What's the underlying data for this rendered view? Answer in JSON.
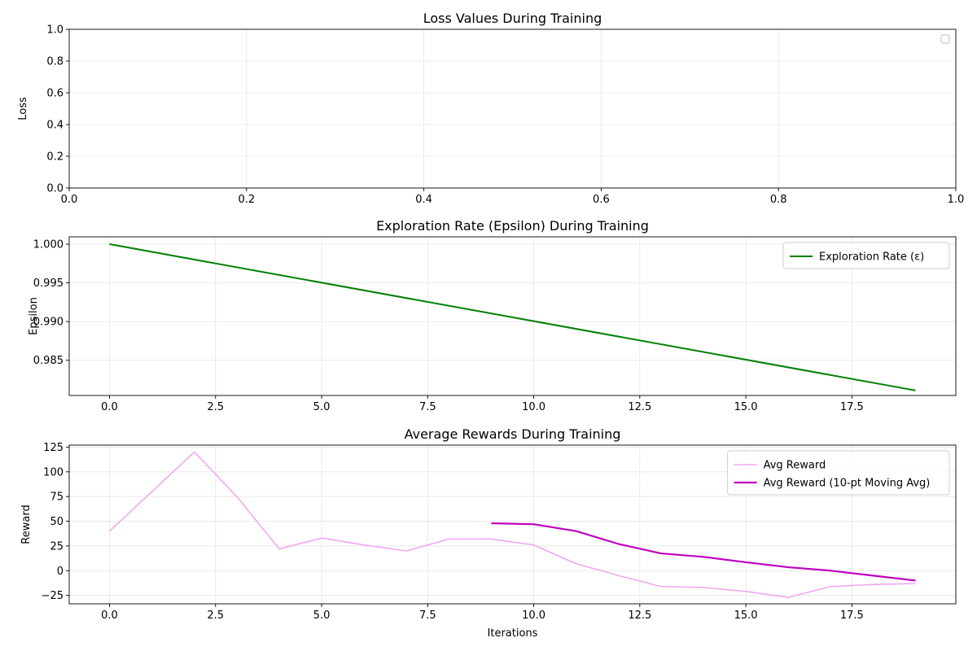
{
  "chart_data": [
    {
      "type": "line",
      "title": "Loss Values During Training",
      "xlabel": "",
      "ylabel": "Loss",
      "xlim": [
        0,
        1
      ],
      "ylim": [
        0,
        1
      ],
      "xticks": [
        0.0,
        0.2,
        0.4,
        0.6,
        0.8,
        1.0
      ],
      "xtick_labels": [
        "0.0",
        "0.2",
        "0.4",
        "0.6",
        "0.8",
        "1.0"
      ],
      "yticks": [
        0.0,
        0.2,
        0.4,
        0.6,
        0.8,
        1.0
      ],
      "ytick_labels": [
        "0.0",
        "0.2",
        "0.4",
        "0.6",
        "0.8",
        "1.0"
      ],
      "grid": true,
      "legend": "top-right",
      "series": []
    },
    {
      "type": "line",
      "title": "Exploration Rate (Epsilon) During Training",
      "xlabel": "",
      "ylabel": "Epsilon",
      "xlim": [
        -0.95,
        19.95
      ],
      "ylim": [
        0.98045,
        1.00095
      ],
      "xticks": [
        0,
        2.5,
        5,
        7.5,
        10,
        12.5,
        15,
        17.5
      ],
      "xtick_labels": [
        "0.0",
        "2.5",
        "5.0",
        "7.5",
        "10.0",
        "12.5",
        "15.0",
        "17.5"
      ],
      "yticks": [
        0.985,
        0.99,
        0.995,
        1.0
      ],
      "ytick_labels": [
        "0.985",
        "0.990",
        "0.995",
        "1.000"
      ],
      "grid": true,
      "legend": "top-right",
      "series": [
        {
          "name": "Exploration Rate (ε)",
          "color": "#008000",
          "width": 2,
          "x": [
            0,
            19
          ],
          "y": [
            1.0,
            0.9811
          ]
        }
      ]
    },
    {
      "type": "line",
      "title": "Average Rewards During Training",
      "xlabel": "Iterations",
      "ylabel": "Reward",
      "xlim": [
        -0.95,
        19.95
      ],
      "ylim": [
        -33.5,
        127
      ],
      "xticks": [
        0,
        2.5,
        5,
        7.5,
        10,
        12.5,
        15,
        17.5
      ],
      "xtick_labels": [
        "0.0",
        "2.5",
        "5.0",
        "7.5",
        "10.0",
        "12.5",
        "15.0",
        "17.5"
      ],
      "yticks": [
        -25,
        0,
        25,
        50,
        75,
        100,
        125
      ],
      "ytick_labels": [
        "−25",
        "0",
        "25",
        "50",
        "75",
        "100",
        "125"
      ],
      "grid": true,
      "legend": "top-right",
      "series": [
        {
          "name": "Avg Reward",
          "color": "#f0a8f0",
          "width": 1.6,
          "x": [
            0,
            1,
            2,
            3,
            4,
            5,
            6,
            7,
            8,
            9,
            10,
            11,
            12,
            13,
            14,
            15,
            16,
            17,
            18,
            19
          ],
          "y": [
            40,
            80,
            120,
            75,
            22,
            33,
            26,
            20,
            32,
            32,
            26,
            7,
            -5,
            -16,
            -17,
            -21,
            -27,
            -16,
            -14,
            -13
          ]
        },
        {
          "name": "Avg Reward (10-pt Moving Avg)",
          "color": "#bf00bf",
          "width": 2.2,
          "x": [
            9,
            10,
            11,
            12,
            13,
            14,
            15,
            16,
            17,
            18,
            19
          ],
          "y": [
            48,
            47,
            40,
            27,
            17.5,
            14,
            8.5,
            3.5,
            0,
            -5,
            -10
          ]
        }
      ]
    }
  ]
}
